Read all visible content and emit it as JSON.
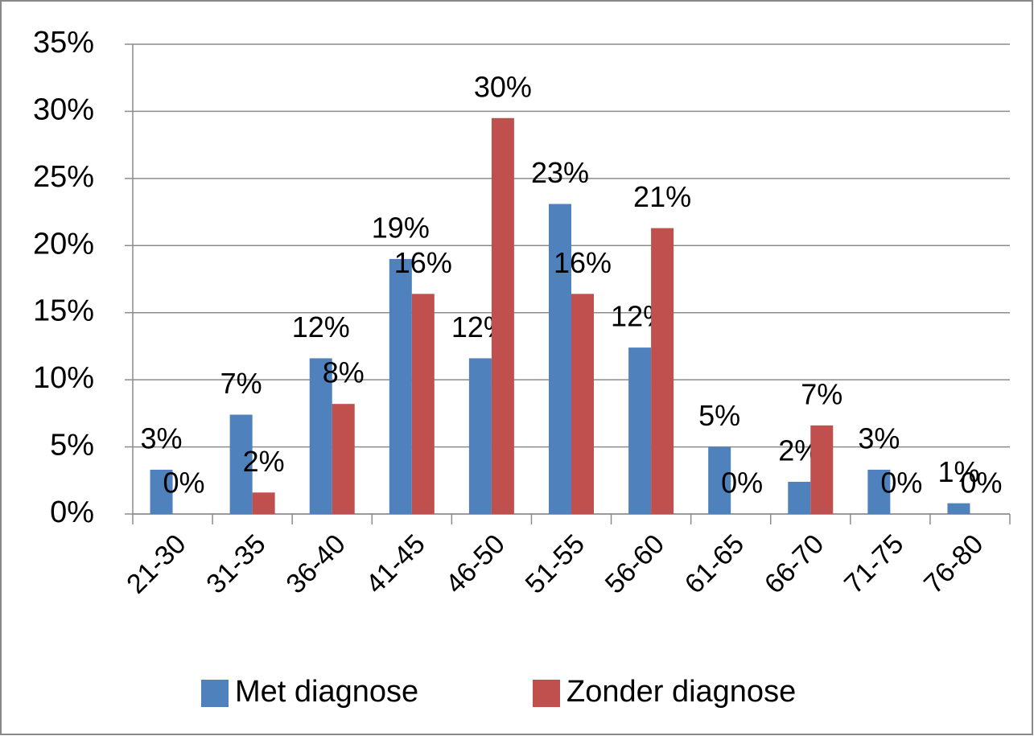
{
  "chart_data": {
    "type": "bar",
    "categories": [
      "21-30",
      "31-35",
      "36-40",
      "41-45",
      "46-50",
      "51-55",
      "56-60",
      "61-65",
      "66-70",
      "71-75",
      "76-80"
    ],
    "series": [
      {
        "name": "Met diagnose",
        "color": "#4f81bd",
        "values": [
          3.3,
          7.4,
          11.6,
          19.0,
          11.6,
          23.1,
          12.4,
          5.0,
          2.4,
          3.3,
          0.8
        ],
        "value_labels": [
          "3%",
          "7%",
          "12%",
          "19%",
          "12%",
          "23%",
          "12%",
          "5%",
          "2%",
          "3%",
          "1%"
        ]
      },
      {
        "name": "Zonder diagnose",
        "color": "#c0504d",
        "values": [
          0,
          1.6,
          8.2,
          16.4,
          29.5,
          16.4,
          21.3,
          0,
          6.6,
          0,
          0
        ],
        "value_labels": [
          "0%",
          "2%",
          "8%",
          "16%",
          "30%",
          "16%",
          "21%",
          "0%",
          "7%",
          "0%",
          "0%"
        ]
      }
    ],
    "ylim": [
      0,
      35
    ],
    "yticks": [
      {
        "value": 0,
        "label": "0%"
      },
      {
        "value": 5,
        "label": "5%"
      },
      {
        "value": 10,
        "label": "10%"
      },
      {
        "value": 15,
        "label": "15%"
      },
      {
        "value": 20,
        "label": "20%"
      },
      {
        "value": 25,
        "label": "25%"
      },
      {
        "value": 30,
        "label": "30%"
      },
      {
        "value": 35,
        "label": "35%"
      }
    ],
    "grid": true,
    "legend": "bottom"
  }
}
